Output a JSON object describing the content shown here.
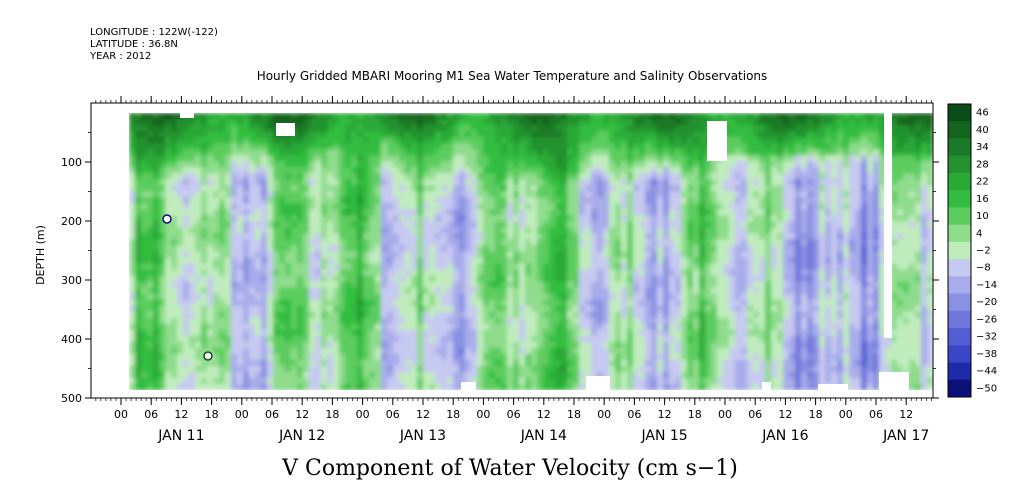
{
  "header": {
    "longitude": "LONGITUDE : 122W(-122)",
    "latitude": "LATITUDE : 36.8N",
    "year": "YEAR : 2012"
  },
  "chart_data": {
    "type": "heatmap",
    "title": "Hourly Gridded MBARI Mooring M1 Sea Water Temperature and Salinity Observations",
    "variable_label": "V Component of Water Velocity (cm s−1)",
    "ylabel": "DEPTH (m)",
    "ylim": [
      500,
      0
    ],
    "y_ticks": [
      "100",
      "200",
      "300",
      "400",
      "500"
    ],
    "x_hour_ticks": [
      "00",
      "06",
      "12",
      "18",
      "00",
      "06",
      "12",
      "18",
      "00",
      "06",
      "12",
      "18",
      "00",
      "06",
      "12",
      "18",
      "00",
      "06",
      "12",
      "18",
      "00",
      "06",
      "12",
      "18",
      "00",
      "06",
      "12"
    ],
    "x_day_labels": [
      "JAN 11",
      "JAN 12",
      "JAN 13",
      "JAN 14",
      "JAN 15",
      "JAN 16",
      "JAN 17"
    ],
    "colorbar": {
      "levels": [
        "46",
        "40",
        "34",
        "28",
        "22",
        "16",
        "10",
        "4",
        "−2",
        "−8",
        "−14",
        "−20",
        "−26",
        "−32",
        "−38",
        "−44",
        "−50"
      ],
      "colors": [
        "#0b4d1a",
        "#13641f",
        "#1a7a27",
        "#22922f",
        "#2aa937",
        "#33bd40",
        "#5ccc5e",
        "#8edc8c",
        "#c0ecbd",
        "#c6c9f0",
        "#a8acea",
        "#8a90e2",
        "#6f76dc",
        "#545ed4",
        "#3a45c9",
        "#1e2aa8",
        "#0b1178"
      ]
    },
    "grid": false
  }
}
